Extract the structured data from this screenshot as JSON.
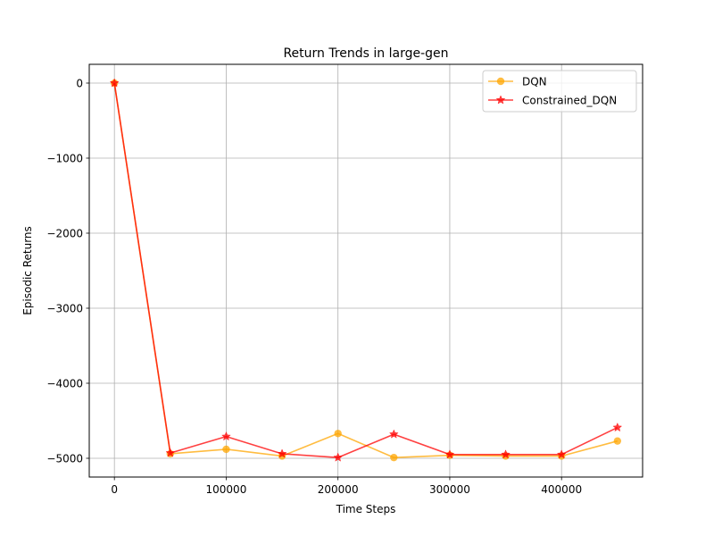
{
  "chart_data": {
    "type": "line",
    "title": "Return Trends in large-gen",
    "xlabel": "Time Steps",
    "ylabel": "Episodic Returns",
    "xlim": [
      -22500,
      472500
    ],
    "ylim": [
      -5250,
      250
    ],
    "xticks": [
      0,
      100000,
      200000,
      300000,
      400000
    ],
    "xtick_labels": [
      "0",
      "100000",
      "200000",
      "300000",
      "400000"
    ],
    "yticks": [
      0,
      -1000,
      -2000,
      -3000,
      -4000,
      -5000
    ],
    "ytick_labels": [
      "0",
      "−1000",
      "−2000",
      "−3000",
      "−4000",
      "−5000"
    ],
    "grid": true,
    "legend_position": "top-right",
    "x": [
      0,
      50000,
      100000,
      150000,
      200000,
      250000,
      300000,
      350000,
      400000,
      450000
    ],
    "series": [
      {
        "name": "DQN",
        "color": "#FFA500",
        "marker": "circle",
        "values": [
          0,
          -4940,
          -4880,
          -4970,
          -4670,
          -4990,
          -4960,
          -4970,
          -4970,
          -4770
        ]
      },
      {
        "name": "Constrained_DQN",
        "color": "#FF0000",
        "marker": "star",
        "values": [
          0,
          -4930,
          -4710,
          -4940,
          -4990,
          -4680,
          -4950,
          -4950,
          -4950,
          -4590
        ]
      }
    ]
  }
}
